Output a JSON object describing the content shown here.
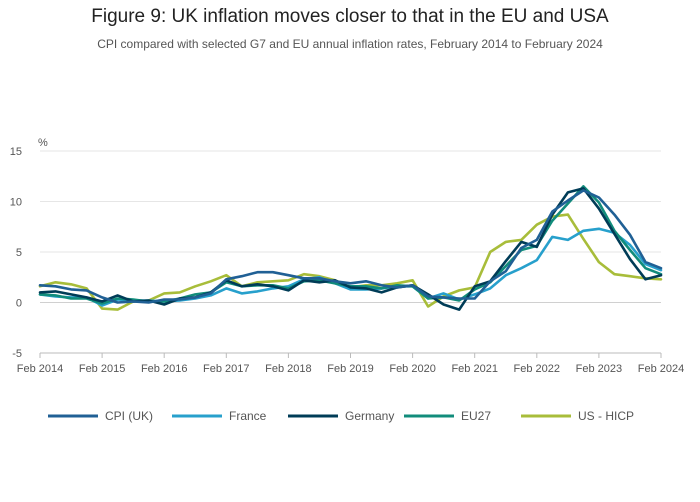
{
  "chart_data": {
    "type": "line",
    "title": "Figure 9: UK inflation moves closer to that in the EU and USA",
    "subtitle": "CPI compared with selected G7 and EU annual inflation rates, February 2014 to February 2024",
    "xlabel": "",
    "ylabel": "%",
    "ylim": [
      -5,
      15
    ],
    "yticks": [
      "-5",
      "0",
      "5",
      "10",
      "15"
    ],
    "xticks": [
      "Feb 2014",
      "Feb 2015",
      "Feb 2016",
      "Feb 2017",
      "Feb 2018",
      "Feb 2019",
      "Feb 2020",
      "Feb 2021",
      "Feb 2022",
      "Feb 2023",
      "Feb 2024"
    ],
    "x_start": "Feb 2014",
    "x_step": "quarterly",
    "grid": true,
    "legend_position": "bottom",
    "series": [
      {
        "name": "CPI (UK)",
        "color": "#206095",
        "values": [
          1.7,
          1.6,
          1.3,
          1.2,
          0.5,
          0.0,
          0.1,
          0.0,
          0.3,
          0.3,
          0.5,
          0.9,
          2.3,
          2.6,
          3.0,
          3.0,
          2.7,
          2.4,
          2.4,
          2.1,
          1.9,
          2.1,
          1.7,
          1.5,
          1.7,
          0.6,
          0.5,
          0.4,
          0.4,
          2.1,
          3.1,
          5.4,
          6.2,
          9.0,
          10.1,
          11.1,
          10.4,
          8.7,
          6.7,
          4.0,
          3.4
        ]
      },
      {
        "name": "France",
        "color": "#27a0cc",
        "values": [
          0.8,
          0.6,
          0.5,
          0.5,
          -0.3,
          0.3,
          0.2,
          0.2,
          0.1,
          0.2,
          0.4,
          0.7,
          1.4,
          0.9,
          1.1,
          1.4,
          1.6,
          2.3,
          2.5,
          1.9,
          1.3,
          1.3,
          1.4,
          1.6,
          1.6,
          0.4,
          0.9,
          0.3,
          0.8,
          1.4,
          2.7,
          3.4,
          4.2,
          6.5,
          6.2,
          7.1,
          7.3,
          6.9,
          5.7,
          3.8,
          3.2
        ]
      },
      {
        "name": "Germany",
        "color": "#003c57",
        "values": [
          1.0,
          1.1,
          0.8,
          0.5,
          0.1,
          0.7,
          0.1,
          0.2,
          -0.2,
          0.4,
          0.5,
          1.0,
          2.2,
          1.6,
          1.8,
          1.6,
          1.2,
          2.2,
          2.0,
          2.2,
          1.5,
          1.4,
          1.0,
          1.5,
          1.7,
          0.8,
          -0.2,
          -0.7,
          1.6,
          2.1,
          4.1,
          6.0,
          5.5,
          8.7,
          10.9,
          11.3,
          9.3,
          6.8,
          4.3,
          2.3,
          2.7
        ]
      },
      {
        "name": "EU27",
        "color": "#118c7b",
        "values": [
          0.8,
          0.7,
          0.4,
          0.4,
          -0.1,
          0.4,
          0.3,
          0.1,
          0.1,
          0.4,
          0.8,
          1.0,
          2.0,
          1.6,
          1.7,
          1.7,
          1.4,
          2.1,
          2.2,
          1.9,
          1.6,
          1.6,
          1.4,
          1.7,
          1.6,
          0.4,
          0.5,
          0.2,
          1.3,
          2.0,
          3.6,
          5.2,
          5.6,
          8.1,
          9.8,
          11.5,
          9.9,
          7.1,
          5.2,
          3.4,
          2.8
        ]
      },
      {
        "name": "US - HICP",
        "color": "#a8bd3a",
        "values": [
          1.6,
          2.0,
          1.8,
          1.4,
          -0.6,
          -0.7,
          0.1,
          0.2,
          0.9,
          1.0,
          1.6,
          2.1,
          2.7,
          1.6,
          2.0,
          2.1,
          2.2,
          2.8,
          2.6,
          2.2,
          1.5,
          1.7,
          1.7,
          1.9,
          2.2,
          -0.4,
          0.6,
          1.2,
          1.5,
          5.0,
          6.0,
          6.2,
          7.7,
          8.5,
          8.7,
          6.3,
          4.0,
          2.8,
          2.6,
          2.4,
          2.3
        ]
      }
    ]
  }
}
